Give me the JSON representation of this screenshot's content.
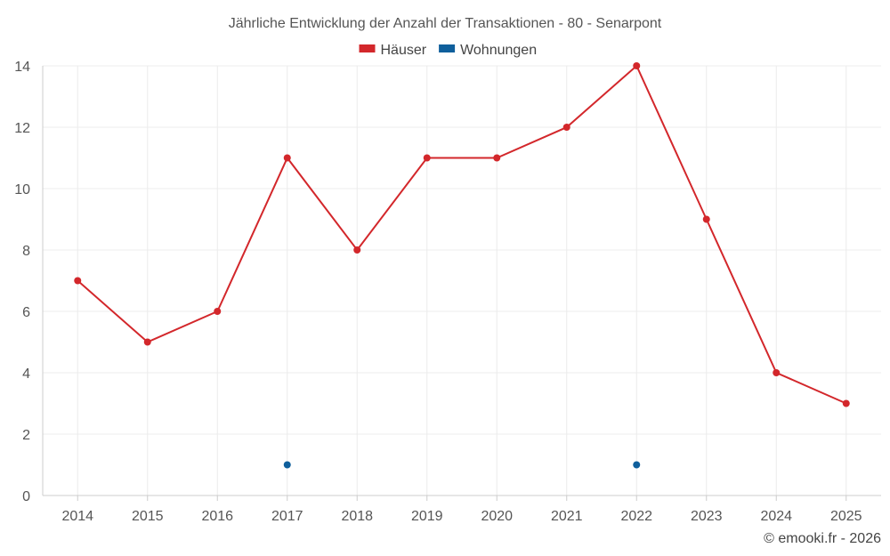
{
  "chart_data": {
    "type": "line",
    "title": "Jährliche Entwicklung der Anzahl der Transaktionen - 80 - Senarpont",
    "x": [
      "2014",
      "2015",
      "2016",
      "2017",
      "2018",
      "2019",
      "2020",
      "2021",
      "2022",
      "2023",
      "2024",
      "2025"
    ],
    "series": [
      {
        "name": "Häuser",
        "color": "#d3272b",
        "values": [
          7,
          5,
          6,
          11,
          8,
          11,
          11,
          12,
          14,
          9,
          4,
          3
        ]
      },
      {
        "name": "Wohnungen",
        "color": "#0f5f9c",
        "values": [
          null,
          null,
          null,
          1,
          null,
          null,
          null,
          null,
          1,
          null,
          null,
          null
        ]
      }
    ],
    "ylim": [
      0,
      14
    ],
    "yticks": [
      0,
      2,
      4,
      6,
      8,
      10,
      12,
      14
    ],
    "grid": true,
    "legend_position": "top-center"
  },
  "credit": "© emooki.fr - 2026"
}
